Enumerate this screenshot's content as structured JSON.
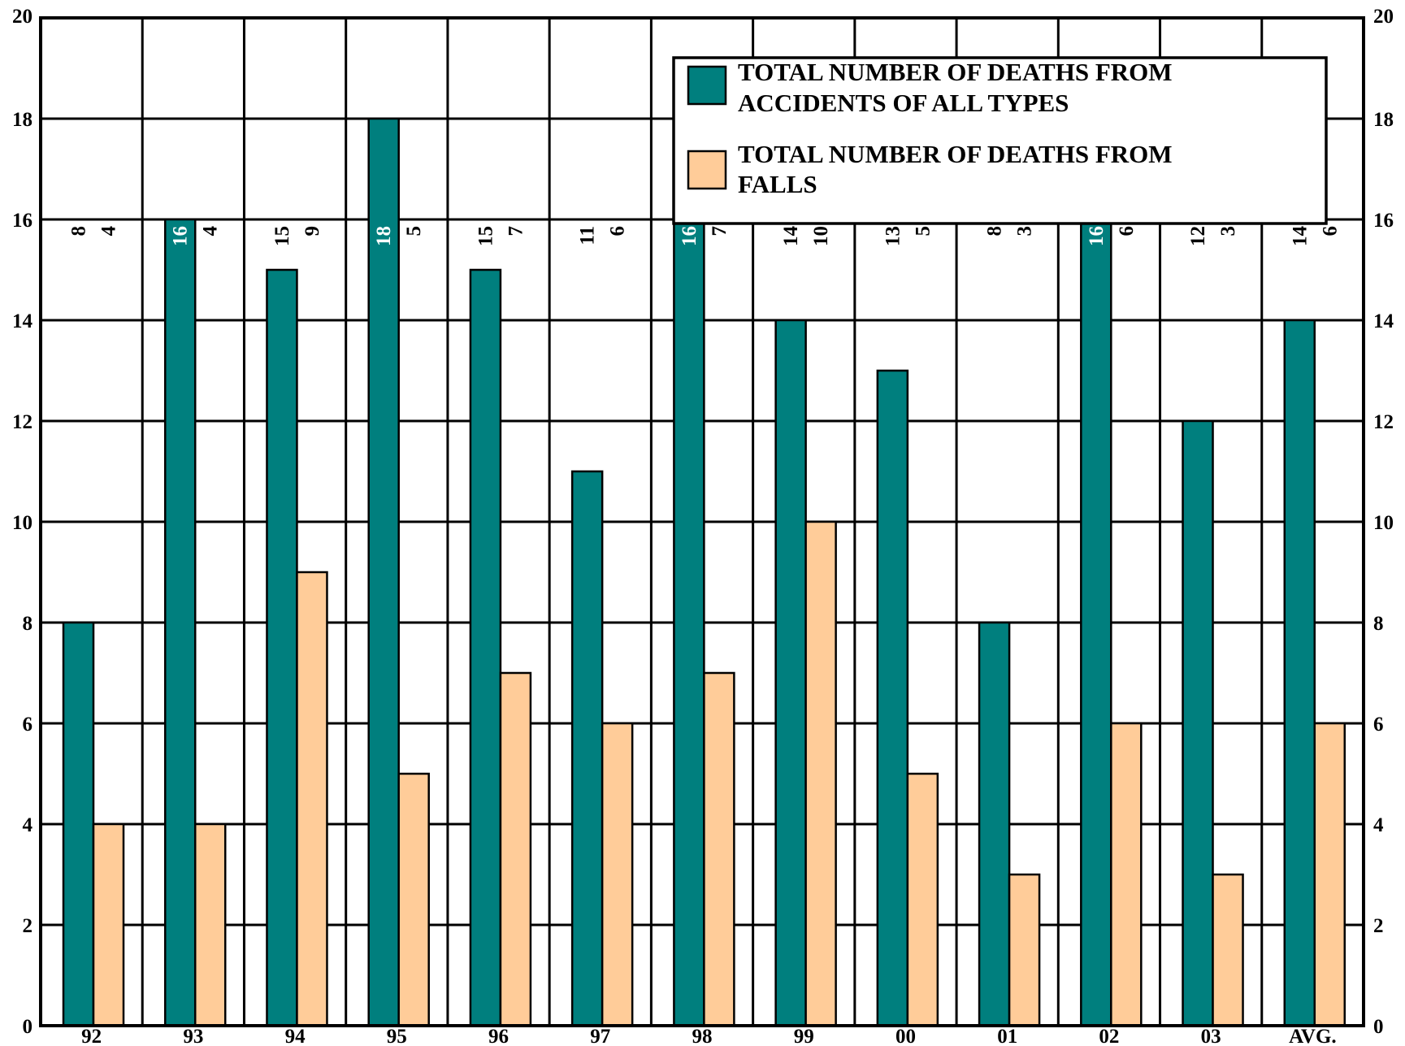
{
  "chart_data": {
    "type": "bar",
    "title": "",
    "xlabel": "",
    "ylabel": "",
    "ylim": [
      0,
      20
    ],
    "yticks": [
      0,
      2,
      4,
      6,
      8,
      10,
      12,
      14,
      16,
      18,
      20
    ],
    "y_axis_both_sides": true,
    "grid": true,
    "legend_position": "top-right",
    "categories": [
      "92",
      "93",
      "94",
      "95",
      "96",
      "97",
      "98",
      "99",
      "00",
      "01",
      "02",
      "03",
      "AVG."
    ],
    "series": [
      {
        "name": "TOTAL NUMBER OF DEATHS FROM ACCIDENTS OF ALL TYPES",
        "legend_lines": [
          "TOTAL NUMBER OF DEATHS FROM",
          "ACCIDENTS OF ALL TYPES"
        ],
        "color": "#007f7e",
        "values": [
          8,
          16,
          15,
          18,
          15,
          11,
          16,
          14,
          13,
          8,
          16,
          12,
          14
        ]
      },
      {
        "name": "TOTAL NUMBER OF DEATHS FROM FALLS",
        "legend_lines": [
          "TOTAL NUMBER OF DEATHS FROM",
          "FALLS"
        ],
        "color": "#ffcc99",
        "values": [
          4,
          4,
          9,
          5,
          7,
          6,
          7,
          10,
          5,
          3,
          6,
          3,
          6
        ]
      }
    ]
  }
}
